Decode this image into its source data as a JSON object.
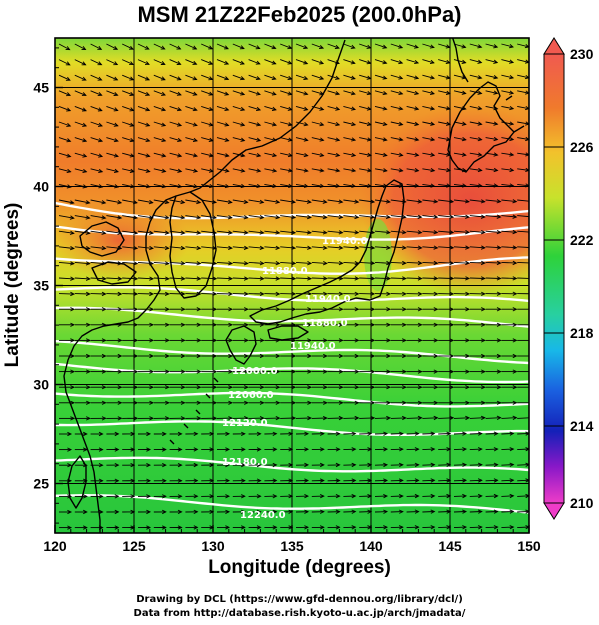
{
  "title": "MSM 21Z22Feb2025 (200.0hPa)",
  "xlabel": "Longitude (degrees)",
  "ylabel": "Latitude  (degrees)",
  "credits": [
    "Drawing by DCL (https://www.gfd-dennou.org/library/dcl/)",
    "Data from http://database.rish.kyoto-u.ac.jp/arch/jmadata/"
  ],
  "map": {
    "lon_range": [
      120,
      150
    ],
    "lat_range": [
      22.5,
      47.5
    ],
    "lon_ticks": [
      "120",
      "125",
      "130",
      "135",
      "140",
      "145",
      "150"
    ],
    "lat_ticks": [
      "25",
      "30",
      "35",
      "40",
      "45"
    ],
    "fill_variable_range": [
      210,
      230
    ]
  },
  "colorbar": {
    "ticks": [
      "230",
      "226",
      "222",
      "218",
      "214",
      "210"
    ]
  },
  "contours": [
    {
      "label": "11940.0"
    },
    {
      "label": "11880.0"
    },
    {
      "label": "11940.0"
    },
    {
      "label": "11880.0"
    },
    {
      "label": "11940.0"
    },
    {
      "label": "12000.0"
    },
    {
      "label": "12060.0"
    },
    {
      "label": "12120.0"
    },
    {
      "label": "12180.0"
    },
    {
      "label": "12240.0"
    }
  ],
  "colors": {
    "warm": "#e84a3c",
    "orange": "#f08a2a",
    "yellow": "#e2dc26",
    "green": "#2ecf3a",
    "contour": "#ffffff"
  }
}
